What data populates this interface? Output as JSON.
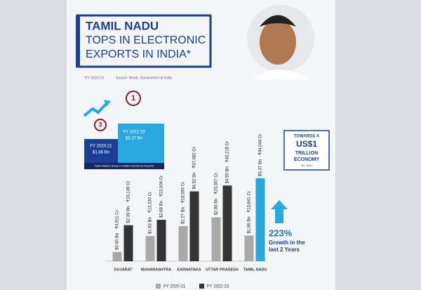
{
  "chart_data": {
    "type": "bar",
    "title": "TAMIL NADU",
    "subtitle": [
      "TOPS IN ELECTRONIC",
      "EXPORTS IN INDIA*"
    ],
    "footnote": "*FY 2022-23",
    "source": "Source: Niryat, Government of India",
    "categories": [
      "GUJARAT",
      "MAHARASHTRA",
      "KARNATAKA",
      "UTTAR PRADESH",
      "TAMIL NADU"
    ],
    "series": [
      {
        "name": "FY 2020-21",
        "color": "#a9a9a9",
        "highlight_color": "#a9a9a9",
        "values": [
          0.6,
          1.63,
          2.27,
          2.84,
          1.66
        ],
        "value_labels": [
          "$0.60 Bn",
          "$1.63 Bn",
          "$2.27 Bn",
          "$2.84 Bn",
          "$1.66 Bn"
        ],
        "inr_values": [
          4911,
          13330,
          18590,
          23307,
          13641
        ],
        "inr_value_labels": [
          "₹4,911 Cr",
          "₹13,330 Cr",
          "₹18,590 Cr",
          "₹23,307 Cr",
          "₹13,641 Cr"
        ]
      },
      {
        "name": "FY 2022-23",
        "color": "#333333",
        "highlight_color": "#29a8e0",
        "values": [
          2.33,
          2.68,
          4.52,
          4.9,
          5.37
        ],
        "value_labels": [
          "$2.33 Bn",
          "$2.68 Bn",
          "$4.52 Bn",
          "$4.90 Bn",
          "$5.37 Bn"
        ],
        "inr_values": [
          19139,
          22004,
          37082,
          40216,
          44044
        ],
        "inr_value_labels": [
          "₹19,139 Cr",
          "₹22,004 Cr",
          "₹37,082 Cr",
          "₹40,216 Cr",
          "₹44,044 Cr"
        ]
      }
    ],
    "inset": {
      "caption": "Tamil Nadu's Share in India's Electronic Exports",
      "bars": [
        {
          "period": "FY 2020-21",
          "amount": "$1.66 Bn",
          "rank": 3
        },
        {
          "period": "FY 2022-23",
          "amount": "$5.37 Bn",
          "rank": 1
        }
      ]
    },
    "economy": [
      "TOWARDS A",
      "US$1",
      "TRILLION",
      "ECONOMY",
      "BY 2030"
    ],
    "growth": [
      "223%",
      "Growth in the",
      "last 2 Years"
    ]
  }
}
